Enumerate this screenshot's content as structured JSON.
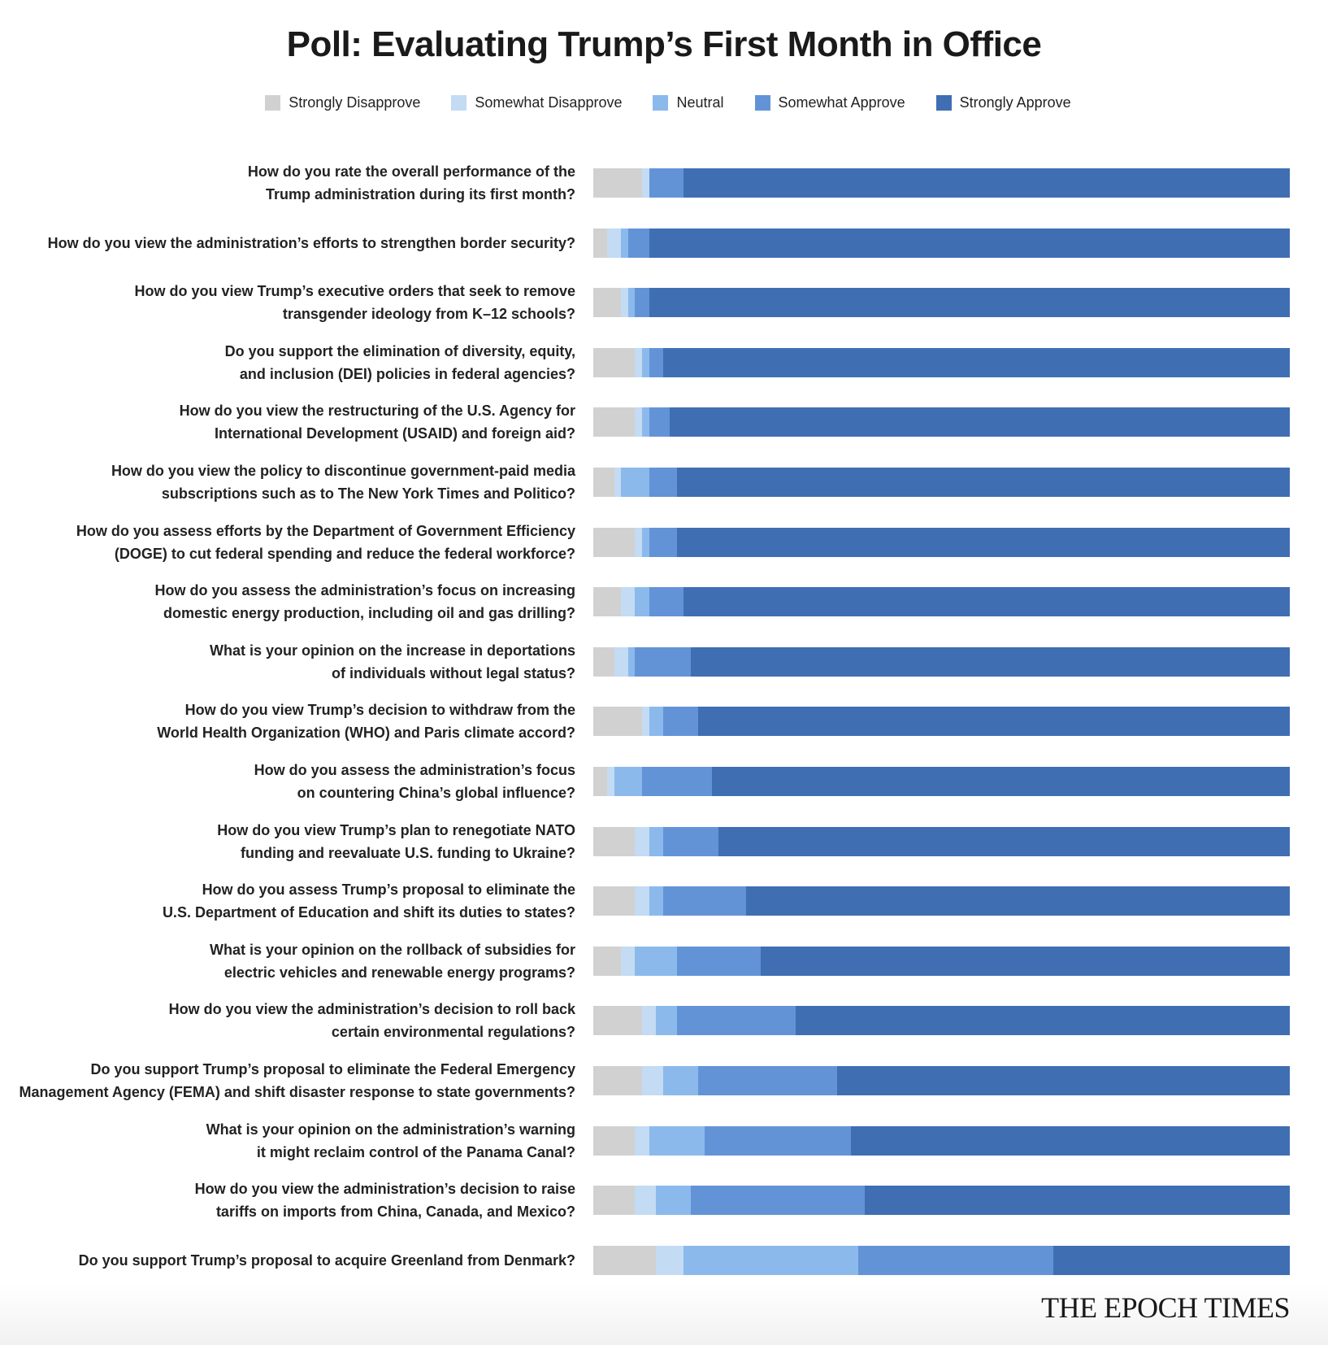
{
  "chart_data": {
    "type": "bar",
    "orientation": "horizontal",
    "stacked": true,
    "normalized_percent": true,
    "title": "Poll: Evaluating Trump’s First Month in Office",
    "xlabel": "",
    "ylabel": "",
    "xlim": [
      0,
      100
    ],
    "grid": false,
    "legend_position": "top-center",
    "series": [
      {
        "name": "Strongly Disapprove",
        "color": "#d1d1d1",
        "values": [
          7,
          2,
          4,
          6,
          6,
          3,
          6,
          4,
          3,
          7,
          2,
          6,
          6,
          4,
          7,
          7,
          6,
          6,
          9
        ]
      },
      {
        "name": "Somewhat Disapprove",
        "color": "#c3dbf3",
        "values": [
          1,
          2,
          1,
          1,
          1,
          1,
          1,
          2,
          2,
          1,
          1,
          2,
          2,
          2,
          2,
          3,
          2,
          3,
          4
        ]
      },
      {
        "name": "Neutral",
        "color": "#8bb9ec",
        "values": [
          0,
          1,
          1,
          1,
          1,
          4,
          1,
          2,
          1,
          2,
          4,
          2,
          2,
          6,
          3,
          5,
          8,
          5,
          25
        ]
      },
      {
        "name": "Somewhat Approve",
        "color": "#6393d7",
        "values": [
          5,
          3,
          2,
          2,
          3,
          4,
          4,
          5,
          8,
          5,
          10,
          8,
          12,
          12,
          17,
          20,
          21,
          25,
          28
        ]
      },
      {
        "name": "Strongly Approve",
        "color": "#3f6eb3",
        "values": [
          87,
          92,
          92,
          90,
          89,
          88,
          88,
          87,
          86,
          85,
          83,
          82,
          78,
          76,
          71,
          65,
          63,
          61,
          34
        ]
      }
    ],
    "categories": [
      [
        "How do you rate the overall performance of the",
        "Trump administration during its first month?"
      ],
      [
        "How do you view the administration’s efforts to strengthen border security?"
      ],
      [
        "How do you view Trump’s executive orders that seek to remove",
        "transgender ideology from K–12 schools?"
      ],
      [
        "Do you support the elimination of diversity, equity,",
        "and inclusion (DEI) policies in federal agencies?"
      ],
      [
        "How do you view the restructuring of the U.S. Agency for",
        "International Development (USAID) and foreign aid?"
      ],
      [
        "How do you view the policy to discontinue government-paid media",
        "subscriptions such as to The New York Times and Politico?"
      ],
      [
        "How do you assess efforts by the Department of Government Efficiency",
        "(DOGE) to cut federal spending and reduce the federal workforce?"
      ],
      [
        "How do you assess the administration’s focus on increasing",
        "domestic energy production, including oil and gas drilling?"
      ],
      [
        "What is your opinion on the increase in deportations",
        "of individuals without legal status?"
      ],
      [
        "How do you view Trump’s decision to withdraw from the",
        "World Health Organization (WHO) and Paris climate accord?"
      ],
      [
        "How do you assess the administration’s focus",
        "on countering China’s global influence?"
      ],
      [
        "How do you view Trump’s plan to renegotiate NATO",
        "funding and reevaluate U.S. funding to Ukraine?"
      ],
      [
        "How do you assess Trump’s proposal to eliminate the",
        "U.S. Department of Education and shift its duties to states?"
      ],
      [
        "What is your opinion on the rollback of subsidies for",
        "electric vehicles and renewable energy programs?"
      ],
      [
        "How do you view the administration’s decision to roll back",
        "certain environmental regulations?"
      ],
      [
        "Do you support Trump’s proposal to eliminate the Federal Emergency",
        "Management Agency (FEMA) and shift disaster response to state governments?"
      ],
      [
        "What is your opinion on the administration’s warning",
        "it might reclaim control of the Panama Canal?"
      ],
      [
        "How do you view the administration’s decision to raise",
        "tariffs on imports from China, Canada, and Mexico?"
      ],
      [
        "Do you support Trump’s proposal to acquire Greenland from Denmark?"
      ]
    ]
  },
  "header": {
    "title": "Poll: Evaluating Trump’s First Month in Office"
  },
  "legend": [
    {
      "label": "Strongly Disapprove",
      "color": "#d1d1d1"
    },
    {
      "label": "Somewhat Disapprove",
      "color": "#c3dbf3"
    },
    {
      "label": "Neutral",
      "color": "#8bb9ec"
    },
    {
      "label": "Somewhat Approve",
      "color": "#6393d7"
    },
    {
      "label": "Strongly Approve",
      "color": "#3f6eb3"
    }
  ],
  "footer": {
    "brand": "THE EPOCH TIMES"
  }
}
